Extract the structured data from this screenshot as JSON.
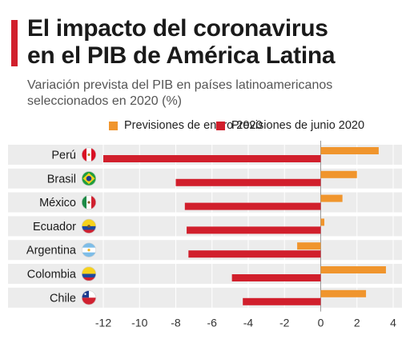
{
  "header": {
    "title_line1": "El impacto del coronavirus",
    "title_line2": "en el PIB de América Latina",
    "subtitle_line1": "Variación prevista del PIB en países latinoamericanos",
    "subtitle_line2": "seleccionados en 2020 (%)"
  },
  "colors": {
    "accent": "#d11f2c",
    "january": "#f0952d",
    "june": "#d11f2c",
    "row_band": "#ececec",
    "axis": "#9a9a9a"
  },
  "chart_data": {
    "type": "bar",
    "orientation": "horizontal",
    "categories": [
      "Perú",
      "Brasil",
      "México",
      "Ecuador",
      "Argentina",
      "Colombia",
      "Chile"
    ],
    "flags": [
      "flag-peru-icon",
      "flag-brazil-icon",
      "flag-mexico-icon",
      "flag-ecuador-icon",
      "flag-argentina-icon",
      "flag-colombia-icon",
      "flag-chile-icon"
    ],
    "series": [
      {
        "name": "Previsiones de enero 2020",
        "color": "#f0952d",
        "values": [
          3.2,
          2.0,
          1.2,
          0.2,
          -1.3,
          3.6,
          2.5
        ]
      },
      {
        "name": "Previsiones de junio 2020",
        "color": "#d11f2c",
        "values": [
          -12.0,
          -8.0,
          -7.5,
          -7.4,
          -7.3,
          -4.9,
          -4.3
        ]
      }
    ],
    "x_ticks": [
      -12,
      -10,
      -8,
      -6,
      -4,
      -2,
      0,
      2,
      4
    ],
    "xlim": [
      -12.7,
      4.2
    ],
    "grid": true,
    "legend": "top"
  }
}
